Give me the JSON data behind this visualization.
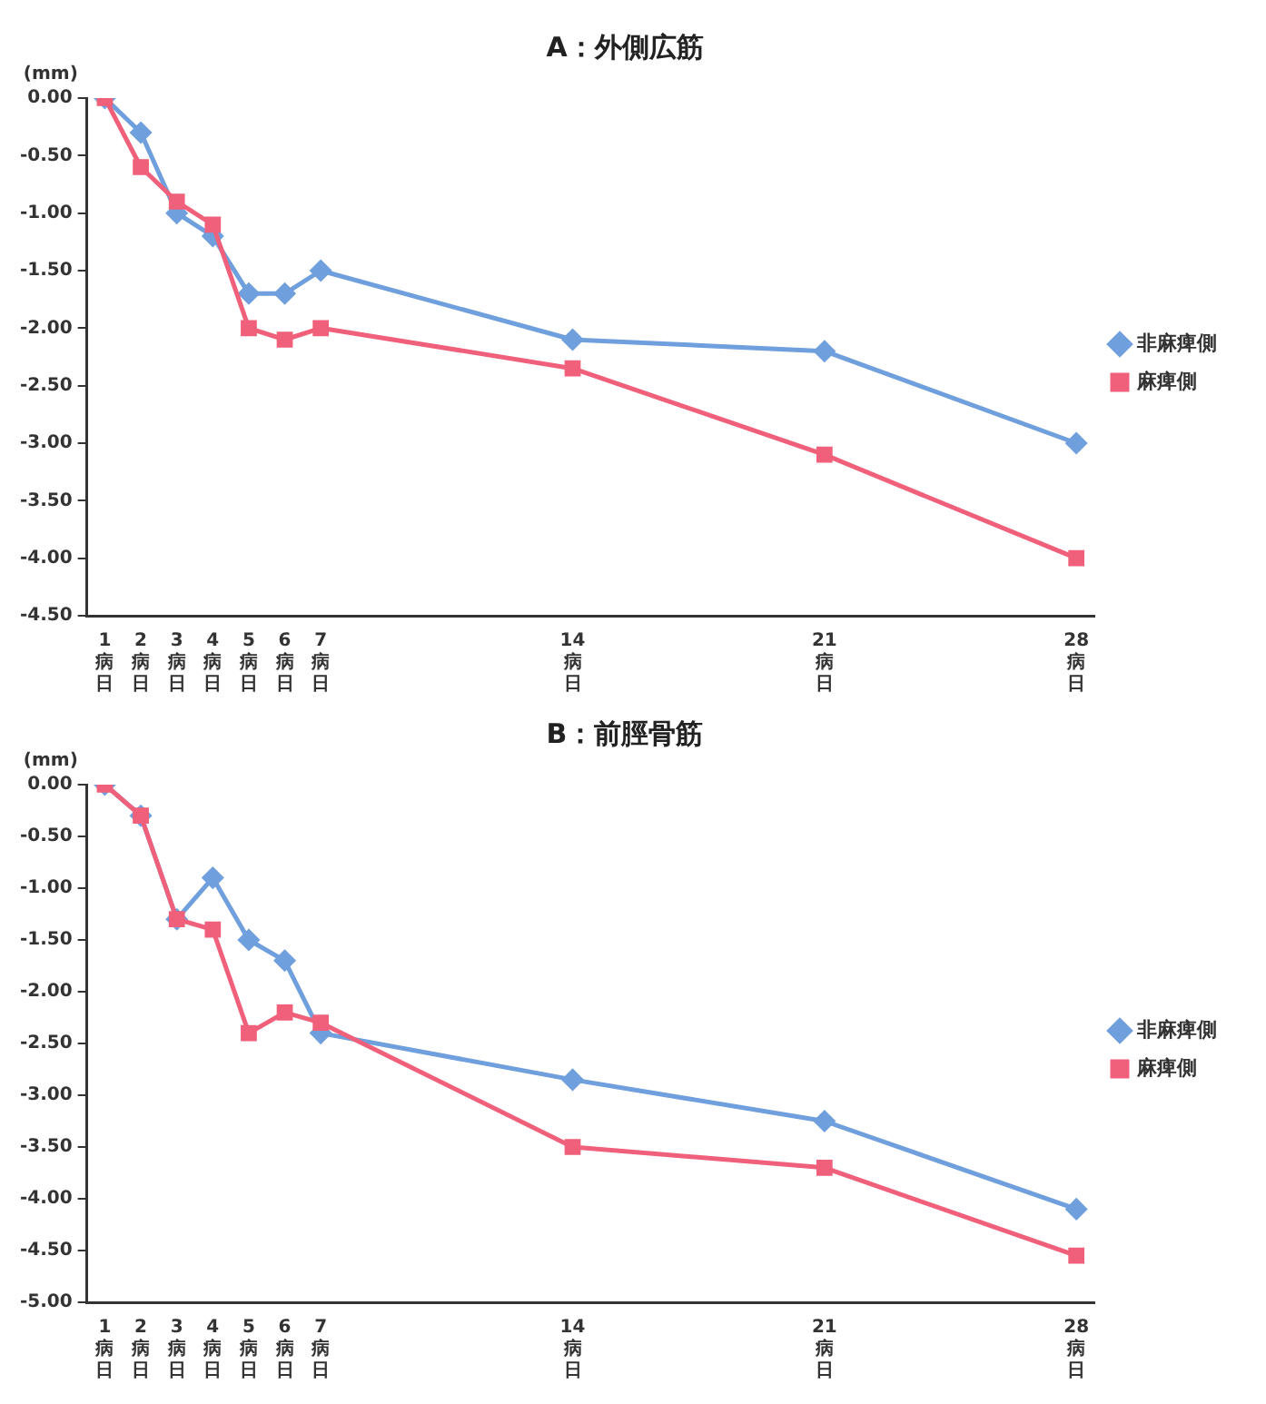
{
  "chart_data": [
    {
      "type": "line",
      "title": "A：外側広筋",
      "ylabel": "(mm)",
      "categories": [
        "1病日",
        "2病日",
        "3病日",
        "4病日",
        "5病日",
        "6病日",
        "7病日",
        null,
        null,
        null,
        null,
        null,
        null,
        "14病日",
        null,
        null,
        null,
        null,
        null,
        null,
        "21病日",
        null,
        null,
        null,
        null,
        null,
        null,
        "28病日"
      ],
      "series": [
        {
          "name": "非麻痺側",
          "color": "#6f9fdc",
          "marker": "diamond",
          "values": [
            0,
            -0.3,
            -1.0,
            -1.2,
            -1.7,
            -1.7,
            -1.5,
            null,
            null,
            null,
            null,
            null,
            null,
            -2.1,
            null,
            null,
            null,
            null,
            null,
            null,
            -2.2,
            null,
            null,
            null,
            null,
            null,
            null,
            -3.0
          ]
        },
        {
          "name": "麻痺側",
          "color": "#f0607a",
          "marker": "square",
          "values": [
            0,
            -0.6,
            -0.9,
            -1.1,
            -2.0,
            -2.1,
            -2.0,
            null,
            null,
            null,
            null,
            null,
            null,
            -2.35,
            null,
            null,
            null,
            null,
            null,
            null,
            -3.1,
            null,
            null,
            null,
            null,
            null,
            null,
            -4.0
          ]
        }
      ],
      "ylim": [
        -4.5,
        0
      ],
      "yticks": [
        {
          "value": 0,
          "label": "0.00"
        },
        {
          "value": -0.5,
          "label": "-0.50"
        },
        {
          "value": -1,
          "label": "-1.00"
        },
        {
          "value": -1.5,
          "label": "-1.50"
        },
        {
          "value": -2,
          "label": "-2.00"
        },
        {
          "value": -2.5,
          "label": "-2.50"
        },
        {
          "value": -3,
          "label": "-3.00"
        },
        {
          "value": -3.5,
          "label": "-3.50"
        },
        {
          "value": -4,
          "label": "-4.00"
        },
        {
          "value": -4.5,
          "label": "-4.50"
        }
      ],
      "grid": false,
      "legend": "right",
      "line_style": "solid"
    },
    {
      "type": "line",
      "title": "B：前脛骨筋",
      "ylabel": "(mm)",
      "categories": [
        "1病日",
        "2病日",
        "3病日",
        "4病日",
        "5病日",
        "6病日",
        "7病日",
        null,
        null,
        null,
        null,
        null,
        null,
        "14病日",
        null,
        null,
        null,
        null,
        null,
        null,
        "21病日",
        null,
        null,
        null,
        null,
        null,
        null,
        "28病日"
      ],
      "series": [
        {
          "name": "非麻痺側",
          "color": "#6f9fdc",
          "marker": "diamond",
          "values": [
            0,
            -0.3,
            -1.3,
            -0.9,
            -1.5,
            -1.7,
            -2.4,
            null,
            null,
            null,
            null,
            null,
            null,
            -2.85,
            null,
            null,
            null,
            null,
            null,
            null,
            -3.25,
            null,
            null,
            null,
            null,
            null,
            null,
            -4.1
          ]
        },
        {
          "name": "麻痺側",
          "color": "#f0607a",
          "marker": "square",
          "values": [
            0,
            -0.3,
            -1.3,
            -1.4,
            -2.4,
            -2.2,
            -2.3,
            null,
            null,
            null,
            null,
            null,
            null,
            -3.5,
            null,
            null,
            null,
            null,
            null,
            null,
            -3.7,
            null,
            null,
            null,
            null,
            null,
            null,
            -4.55
          ]
        }
      ],
      "ylim": [
        -5,
        0
      ],
      "yticks": [
        {
          "value": 0,
          "label": "0.00"
        },
        {
          "value": -0.5,
          "label": "-0.50"
        },
        {
          "value": -1,
          "label": "-1.00"
        },
        {
          "value": -1.5,
          "label": "-1.50"
        },
        {
          "value": -2,
          "label": "-2.00"
        },
        {
          "value": -2.5,
          "label": "-2.50"
        },
        {
          "value": -3,
          "label": "-3.00"
        },
        {
          "value": -3.5,
          "label": "-3.50"
        },
        {
          "value": -4,
          "label": "-4.00"
        },
        {
          "value": -4.5,
          "label": "-4.50"
        },
        {
          "value": -5,
          "label": "-5.00"
        }
      ],
      "grid": false,
      "legend": "right",
      "line_style": "solid"
    }
  ]
}
